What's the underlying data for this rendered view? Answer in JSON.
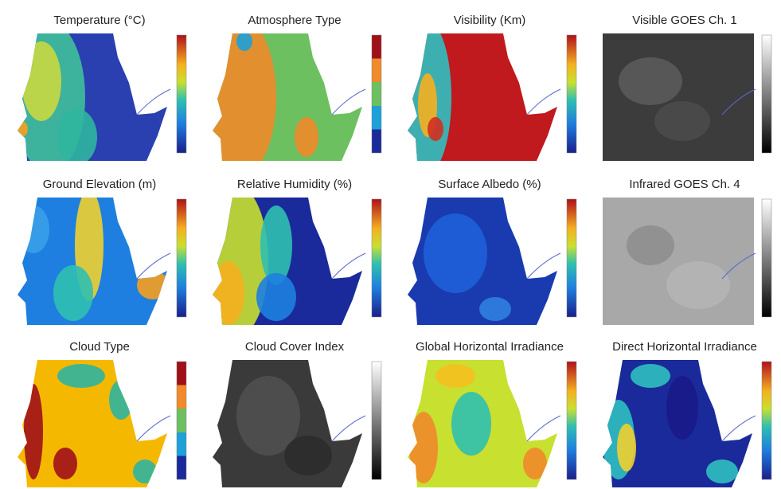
{
  "panels": [
    {
      "title": "Temperature (°C)"
    },
    {
      "title": "Atmosphere Type"
    },
    {
      "title": "Visibility (Km)"
    },
    {
      "title": "Visible GOES Ch. 1"
    },
    {
      "title": "Ground Elevation (m)"
    },
    {
      "title": "Relative Humidity (%)"
    },
    {
      "title": "Surface Albedo (%)"
    },
    {
      "title": "Infrared GOES Ch. 4"
    },
    {
      "title": "Cloud Type"
    },
    {
      "title": "Cloud Cover Index"
    },
    {
      "title": "Global Horizontal Irradiance"
    },
    {
      "title": "Direct Horizontal Irradiance"
    }
  ]
}
